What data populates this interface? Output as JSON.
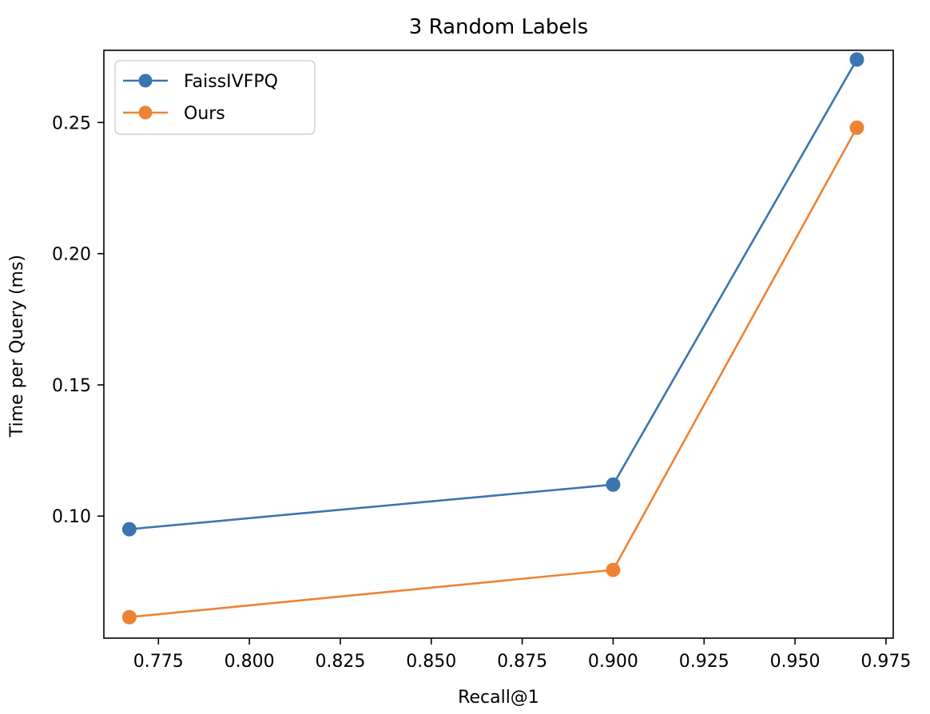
{
  "chart_data": {
    "type": "line",
    "title": "3 Random Labels",
    "xlabel": "Recall@1",
    "ylabel": "Time per Query (ms)",
    "xlim": [
      0.76,
      0.977
    ],
    "ylim": [
      0.0535,
      0.2775
    ],
    "xticks": [
      0.775,
      0.8,
      0.825,
      0.85,
      0.875,
      0.9,
      0.925,
      0.95,
      0.975
    ],
    "xtick_labels": [
      "0.775",
      "0.800",
      "0.825",
      "0.850",
      "0.875",
      "0.900",
      "0.925",
      "0.950",
      "0.975"
    ],
    "yticks": [
      0.1,
      0.15,
      0.2,
      0.25
    ],
    "ytick_labels": [
      "0.10",
      "0.15",
      "0.20",
      "0.25"
    ],
    "grid": false,
    "legend_position": "top-left",
    "series": [
      {
        "name": "FaissIVFPQ",
        "color": "#3a75b0",
        "marker": "circle",
        "x": [
          0.767,
          0.9,
          0.967
        ],
        "y": [
          0.095,
          0.112,
          0.274
        ]
      },
      {
        "name": "Ours",
        "color": "#ee8234",
        "marker": "circle",
        "x": [
          0.767,
          0.9,
          0.967
        ],
        "y": [
          0.0615,
          0.0795,
          0.248
        ]
      }
    ]
  }
}
